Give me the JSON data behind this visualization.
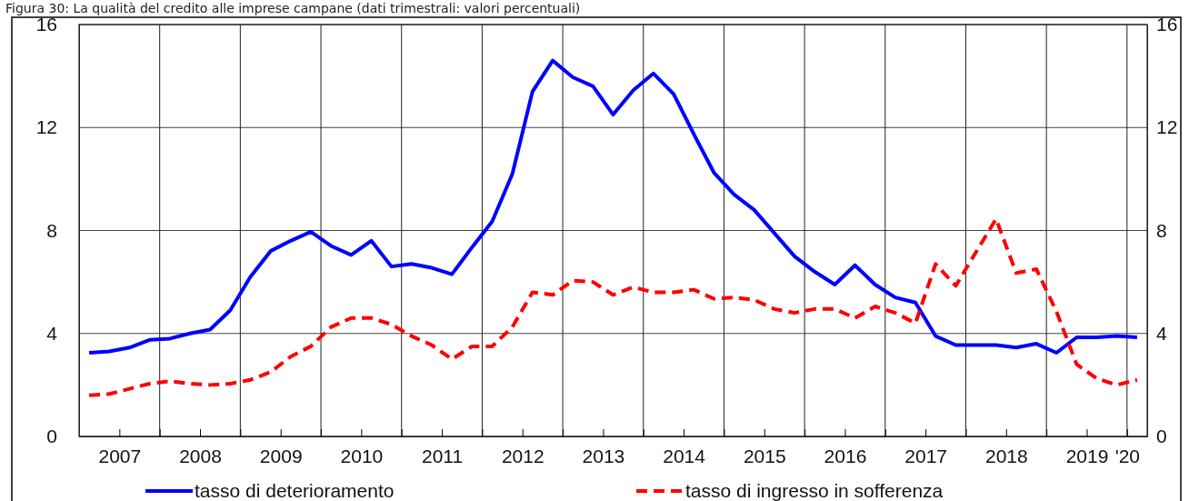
{
  "chart_data": {
    "type": "line",
    "title": "Figura 30: La qualità del credito alle imprese campane (dati trimestrali: valori percentuali)",
    "x": [
      2007.125,
      2007.375,
      2007.625,
      2007.875,
      2008.125,
      2008.375,
      2008.625,
      2008.875,
      2009.125,
      2009.375,
      2009.625,
      2009.875,
      2010.125,
      2010.375,
      2010.625,
      2010.875,
      2011.125,
      2011.375,
      2011.625,
      2011.875,
      2012.125,
      2012.375,
      2012.625,
      2012.875,
      2013.125,
      2013.375,
      2013.625,
      2013.875,
      2014.125,
      2014.375,
      2014.625,
      2014.875,
      2015.125,
      2015.375,
      2015.625,
      2015.875,
      2016.125,
      2016.375,
      2016.625,
      2016.875,
      2017.125,
      2017.375,
      2017.625,
      2017.875,
      2018.125,
      2018.375,
      2018.625,
      2018.875,
      2019.125,
      2019.375,
      2019.625,
      2019.875,
      2020.125
    ],
    "series": [
      {
        "name": "tasso di deterioramento",
        "color": "#0000ff",
        "line_style": "solid",
        "values": [
          3.25,
          3.3,
          3.45,
          3.75,
          3.8,
          4.0,
          4.15,
          4.9,
          6.2,
          7.2,
          7.6,
          7.95,
          7.4,
          7.05,
          7.6,
          6.6,
          6.7,
          6.55,
          6.3,
          7.35,
          8.35,
          10.2,
          13.4,
          14.6,
          13.95,
          13.6,
          12.5,
          13.45,
          14.1,
          13.3,
          11.75,
          10.25,
          9.4,
          8.8,
          7.9,
          7.0,
          6.4,
          5.9,
          6.65,
          5.9,
          5.4,
          5.2,
          3.9,
          3.55,
          3.55,
          3.55,
          3.45,
          3.6,
          3.25,
          3.85,
          3.85,
          3.9,
          3.85
        ]
      },
      {
        "name": "tasso di ingresso in sofferenza",
        "color": "#ff0000",
        "line_style": "dashed",
        "values": [
          1.6,
          1.65,
          1.85,
          2.05,
          2.15,
          2.05,
          2.0,
          2.05,
          2.2,
          2.5,
          3.1,
          3.5,
          4.25,
          4.6,
          4.6,
          4.35,
          3.9,
          3.55,
          3.0,
          3.5,
          3.5,
          4.25,
          5.6,
          5.5,
          6.05,
          6.0,
          5.5,
          5.8,
          5.6,
          5.6,
          5.7,
          5.35,
          5.4,
          5.3,
          4.95,
          4.8,
          4.95,
          4.95,
          4.6,
          5.05,
          4.8,
          4.4,
          6.7,
          5.85,
          7.15,
          8.45,
          6.35,
          6.5,
          4.85,
          2.8,
          2.25,
          2.0,
          2.2
        ]
      }
    ],
    "xlim": [
      2007,
      2020.25
    ],
    "xticks": [
      {
        "value": 2007.5,
        "label": "2007"
      },
      {
        "value": 2008,
        "label": null
      },
      {
        "value": 2008.5,
        "label": "2008"
      },
      {
        "value": 2009,
        "label": null
      },
      {
        "value": 2009.5,
        "label": "2009"
      },
      {
        "value": 2010,
        "label": null
      },
      {
        "value": 2010.5,
        "label": "2010"
      },
      {
        "value": 2011,
        "label": null
      },
      {
        "value": 2011.5,
        "label": "2011"
      },
      {
        "value": 2012,
        "label": null
      },
      {
        "value": 2012.5,
        "label": "2012"
      },
      {
        "value": 2013,
        "label": null
      },
      {
        "value": 2013.5,
        "label": "2013"
      },
      {
        "value": 2014,
        "label": null
      },
      {
        "value": 2014.5,
        "label": "2014"
      },
      {
        "value": 2015,
        "label": null
      },
      {
        "value": 2015.5,
        "label": "2015"
      },
      {
        "value": 2016,
        "label": null
      },
      {
        "value": 2016.5,
        "label": "2016"
      },
      {
        "value": 2017,
        "label": null
      },
      {
        "value": 2017.5,
        "label": "2017"
      },
      {
        "value": 2018,
        "label": null
      },
      {
        "value": 2018.5,
        "label": "2018"
      },
      {
        "value": 2019,
        "label": null
      },
      {
        "value": 2019.5,
        "label": "2019"
      },
      {
        "value": 2020,
        "label": "'20"
      }
    ],
    "ylim": [
      0,
      16
    ],
    "yticks": [
      0,
      4,
      8,
      12,
      16
    ],
    "y2lim": [
      0,
      16
    ],
    "y2ticks": [
      0,
      4,
      8,
      12,
      16
    ],
    "grid": true,
    "legend": "bottom",
    "marker": "none"
  }
}
